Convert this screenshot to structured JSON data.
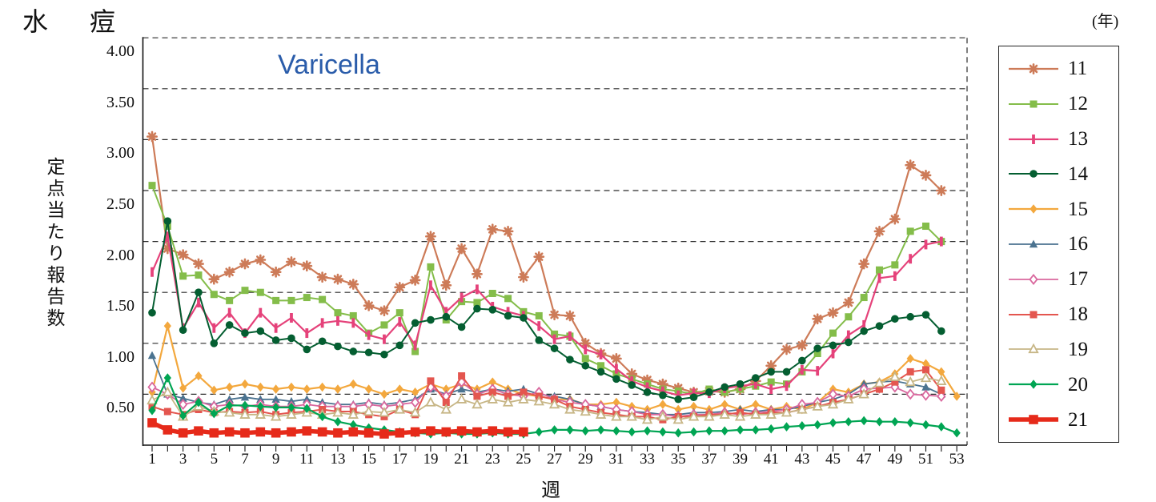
{
  "page_title": "水　痘",
  "chart": {
    "overlay_title": "Varicella",
    "overlay_title_color": "#2a5caa",
    "y_axis_label": "定点当たり報告数",
    "x_axis_label": "週",
    "legend_unit_label": "(年)",
    "y_tick_labels": [
      "4.00",
      "3.50",
      "3.00",
      "2.50",
      "2.00",
      "1.50",
      "1.00",
      "0.50"
    ],
    "x_tick_labels": [
      "1",
      "3",
      "5",
      "7",
      "9",
      "11",
      "13",
      "15",
      "17",
      "19",
      "21",
      "23",
      "25",
      "27",
      "29",
      "31",
      "33",
      "35",
      "37",
      "39",
      "41",
      "43",
      "45",
      "47",
      "49",
      "51",
      "53"
    ],
    "grid_color": "#2b2b2b",
    "axis_color": "#111111"
  },
  "chart_data": {
    "type": "line",
    "title": "水痘 (Varicella) 週別定点当たり報告数",
    "xlabel": "週",
    "ylabel": "定点当たり報告数",
    "x_unit": "week, values start at week 1",
    "xlim": [
      1,
      53
    ],
    "ylim": [
      0,
      4.0
    ],
    "y_gridlines": [
      0.5,
      1.0,
      1.5,
      2.0,
      2.5,
      3.0,
      3.5,
      4.0
    ],
    "grid": "horizontal dashed",
    "legend_position": "right",
    "legend_title": "(年)",
    "series": [
      {
        "name": "11",
        "color": "#cd7b58",
        "marker": "asterisk",
        "line_width": 2.2,
        "values": [
          3.03,
          1.93,
          1.87,
          1.78,
          1.63,
          1.7,
          1.78,
          1.82,
          1.7,
          1.8,
          1.76,
          1.65,
          1.63,
          1.58,
          1.37,
          1.32,
          1.55,
          1.62,
          2.05,
          1.57,
          1.93,
          1.68,
          2.12,
          2.1,
          1.65,
          1.85,
          1.28,
          1.27,
          1.0,
          0.9,
          0.85,
          0.7,
          0.64,
          0.6,
          0.56,
          0.52,
          0.53,
          0.52,
          0.55,
          0.63,
          0.78,
          0.94,
          0.98,
          1.24,
          1.3,
          1.4,
          1.78,
          2.1,
          2.22,
          2.75,
          2.65,
          2.5
        ]
      },
      {
        "name": "12",
        "color": "#84bd4a",
        "marker": "square",
        "line_width": 2.0,
        "values": [
          2.55,
          2.15,
          1.66,
          1.67,
          1.48,
          1.42,
          1.52,
          1.5,
          1.42,
          1.42,
          1.45,
          1.43,
          1.3,
          1.27,
          1.1,
          1.18,
          1.3,
          0.92,
          1.75,
          1.23,
          1.41,
          1.4,
          1.49,
          1.44,
          1.31,
          1.27,
          1.09,
          1.07,
          0.85,
          0.78,
          0.7,
          0.65,
          0.6,
          0.55,
          0.53,
          0.5,
          0.55,
          0.52,
          0.55,
          0.58,
          0.62,
          0.6,
          0.72,
          0.9,
          1.1,
          1.26,
          1.45,
          1.72,
          1.77,
          2.1,
          2.15,
          2.0
        ]
      },
      {
        "name": "13",
        "color": "#e5427a",
        "marker": "vbar",
        "line_width": 2.2,
        "values": [
          1.7,
          2.05,
          1.15,
          1.4,
          1.15,
          1.3,
          1.1,
          1.3,
          1.15,
          1.25,
          1.1,
          1.2,
          1.22,
          1.2,
          1.08,
          1.04,
          1.21,
          0.98,
          1.57,
          1.31,
          1.45,
          1.53,
          1.36,
          1.31,
          1.27,
          1.17,
          1.04,
          1.07,
          0.94,
          0.89,
          0.75,
          0.63,
          0.57,
          0.53,
          0.49,
          0.51,
          0.51,
          0.56,
          0.58,
          0.6,
          0.55,
          0.58,
          0.74,
          0.73,
          0.9,
          1.08,
          1.18,
          1.64,
          1.66,
          1.83,
          1.97,
          2.0
        ]
      },
      {
        "name": "14",
        "color": "#045e31",
        "marker": "circle",
        "line_width": 2.0,
        "values": [
          1.3,
          2.2,
          1.13,
          1.5,
          1.0,
          1.18,
          1.1,
          1.12,
          1.03,
          1.05,
          0.94,
          1.02,
          0.97,
          0.92,
          0.91,
          0.89,
          0.98,
          1.2,
          1.23,
          1.26,
          1.16,
          1.34,
          1.33,
          1.27,
          1.25,
          1.03,
          0.95,
          0.84,
          0.78,
          0.72,
          0.65,
          0.59,
          0.52,
          0.49,
          0.45,
          0.47,
          0.52,
          0.57,
          0.6,
          0.66,
          0.72,
          0.72,
          0.83,
          0.95,
          0.98,
          1.01,
          1.12,
          1.17,
          1.24,
          1.26,
          1.28,
          1.12
        ]
      },
      {
        "name": "15",
        "color": "#f3a83e",
        "marker": "diamond",
        "line_width": 2.2,
        "values": [
          0.52,
          1.17,
          0.56,
          0.68,
          0.54,
          0.57,
          0.6,
          0.57,
          0.55,
          0.57,
          0.55,
          0.57,
          0.55,
          0.6,
          0.55,
          0.5,
          0.55,
          0.52,
          0.6,
          0.55,
          0.6,
          0.55,
          0.62,
          0.55,
          0.5,
          0.48,
          0.45,
          0.45,
          0.4,
          0.4,
          0.42,
          0.38,
          0.35,
          0.4,
          0.35,
          0.38,
          0.35,
          0.4,
          0.35,
          0.4,
          0.35,
          0.38,
          0.35,
          0.42,
          0.55,
          0.52,
          0.6,
          0.62,
          0.7,
          0.85,
          0.8,
          0.72,
          0.48
        ]
      },
      {
        "name": "16",
        "color": "#4b7390",
        "marker": "triangle",
        "line_width": 1.8,
        "values": [
          0.88,
          0.5,
          0.46,
          0.42,
          0.4,
          0.45,
          0.47,
          0.45,
          0.45,
          0.43,
          0.45,
          0.42,
          0.4,
          0.4,
          0.42,
          0.4,
          0.42,
          0.45,
          0.55,
          0.5,
          0.55,
          0.52,
          0.55,
          0.53,
          0.55,
          0.5,
          0.48,
          0.45,
          0.4,
          0.38,
          0.35,
          0.33,
          0.32,
          0.3,
          0.3,
          0.32,
          0.32,
          0.33,
          0.35,
          0.33,
          0.35,
          0.35,
          0.38,
          0.42,
          0.45,
          0.5,
          0.6,
          0.62,
          0.63,
          0.6,
          0.57,
          0.5
        ]
      },
      {
        "name": "17",
        "color": "#d9689e",
        "marker": "diamond-open",
        "line_width": 1.8,
        "values": [
          0.57,
          0.5,
          0.4,
          0.43,
          0.38,
          0.4,
          0.38,
          0.4,
          0.38,
          0.38,
          0.4,
          0.38,
          0.38,
          0.38,
          0.4,
          0.38,
          0.4,
          0.42,
          0.57,
          0.48,
          0.62,
          0.5,
          0.55,
          0.5,
          0.48,
          0.52,
          0.45,
          0.42,
          0.4,
          0.38,
          0.35,
          0.33,
          0.3,
          0.3,
          0.28,
          0.3,
          0.3,
          0.32,
          0.3,
          0.32,
          0.33,
          0.35,
          0.4,
          0.42,
          0.5,
          0.48,
          0.55,
          0.56,
          0.57,
          0.5,
          0.49,
          0.48
        ]
      },
      {
        "name": "18",
        "color": "#e4564f",
        "marker": "square",
        "line_width": 2.0,
        "values": [
          0.38,
          0.33,
          0.3,
          0.35,
          0.32,
          0.33,
          0.32,
          0.33,
          0.3,
          0.32,
          0.33,
          0.35,
          0.33,
          0.33,
          0.3,
          0.28,
          0.35,
          0.3,
          0.63,
          0.42,
          0.68,
          0.48,
          0.52,
          0.48,
          0.52,
          0.48,
          0.45,
          0.38,
          0.35,
          0.32,
          0.3,
          0.28,
          0.28,
          0.25,
          0.28,
          0.28,
          0.3,
          0.3,
          0.32,
          0.3,
          0.32,
          0.32,
          0.35,
          0.38,
          0.42,
          0.45,
          0.5,
          0.55,
          0.62,
          0.72,
          0.74,
          0.54
        ]
      },
      {
        "name": "19",
        "color": "#c7b686",
        "marker": "triangle-open",
        "line_width": 1.8,
        "values": [
          0.44,
          0.52,
          0.28,
          0.38,
          0.33,
          0.32,
          0.3,
          0.3,
          0.28,
          0.3,
          0.32,
          0.3,
          0.32,
          0.3,
          0.33,
          0.32,
          0.35,
          0.32,
          0.42,
          0.35,
          0.45,
          0.4,
          0.45,
          0.42,
          0.45,
          0.43,
          0.4,
          0.35,
          0.33,
          0.3,
          0.28,
          0.28,
          0.25,
          0.28,
          0.25,
          0.28,
          0.28,
          0.3,
          0.28,
          0.3,
          0.3,
          0.32,
          0.35,
          0.38,
          0.4,
          0.45,
          0.5,
          0.61,
          0.67,
          0.62,
          0.66,
          0.63
        ]
      },
      {
        "name": "20",
        "color": "#00a553",
        "marker": "diamond",
        "line_width": 2.2,
        "values": [
          0.34,
          0.66,
          0.29,
          0.42,
          0.31,
          0.39,
          0.39,
          0.38,
          0.37,
          0.37,
          0.36,
          0.28,
          0.23,
          0.2,
          0.17,
          0.15,
          0.13,
          0.12,
          0.11,
          0.12,
          0.11,
          0.11,
          0.12,
          0.11,
          0.11,
          0.13,
          0.15,
          0.15,
          0.14,
          0.15,
          0.14,
          0.13,
          0.14,
          0.13,
          0.12,
          0.13,
          0.14,
          0.14,
          0.15,
          0.15,
          0.16,
          0.18,
          0.19,
          0.2,
          0.22,
          0.23,
          0.24,
          0.23,
          0.23,
          0.22,
          0.2,
          0.18,
          0.12
        ]
      },
      {
        "name": "21",
        "color": "#e62a1a",
        "marker": "square-big",
        "line_width": 5.5,
        "values": [
          0.22,
          0.15,
          0.12,
          0.14,
          0.12,
          0.13,
          0.12,
          0.13,
          0.12,
          0.13,
          0.14,
          0.13,
          0.12,
          0.13,
          0.12,
          0.11,
          0.12,
          0.13,
          0.14,
          0.13,
          0.14,
          0.13,
          0.14,
          0.13,
          0.13
        ]
      }
    ]
  }
}
